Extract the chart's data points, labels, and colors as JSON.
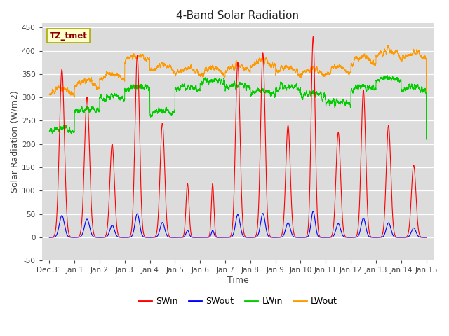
{
  "title": "4-Band Solar Radiation",
  "xlabel": "Time",
  "ylabel": "Solar Radiation (W/m2)",
  "ylim": [
    -50,
    460
  ],
  "annotation_text": "TZ_tmet",
  "colors": {
    "SWin": "#ff0000",
    "SWout": "#0000ff",
    "LWin": "#00cc00",
    "LWout": "#ff9900"
  },
  "bg_color": "#dcdcdc",
  "fig_bg": "#ffffff",
  "xtick_labels": [
    "Dec 31",
    "Jan 1",
    "Jan 2",
    "Jan 3",
    "Jan 4",
    "Jan 5",
    "Jan 6",
    "Jan 7",
    "Jan 8",
    "Jan 9",
    "Jan 10",
    "Jan 11",
    "Jan 12",
    "Jan 13",
    "Jan 14",
    "Jan 15"
  ],
  "ytick_values": [
    -50,
    0,
    50,
    100,
    150,
    200,
    250,
    300,
    350,
    400,
    450
  ],
  "seed": 42,
  "n_per_day": 480,
  "days": 15
}
